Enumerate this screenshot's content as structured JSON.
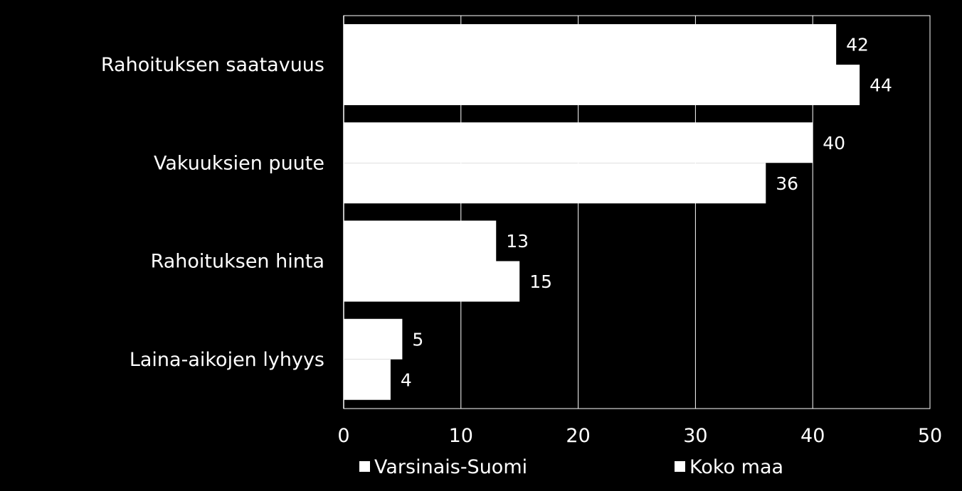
{
  "chart_data": {
    "type": "bar",
    "orientation": "horizontal",
    "categories": [
      "Rahoituksen saatavuus",
      "Vakuuksien puute",
      "Rahoituksen hinta",
      "Laina-aikojen lyhyys"
    ],
    "series": [
      {
        "name": "Varsinais-Suomi",
        "values": [
          42,
          40,
          13,
          5
        ],
        "color": "#ffffff"
      },
      {
        "name": "Koko maa",
        "values": [
          44,
          36,
          15,
          4
        ],
        "color": "#ffffff"
      }
    ],
    "xlim": [
      0,
      50
    ],
    "xticks": [
      0,
      10,
      20,
      30,
      40,
      50
    ],
    "grid": true,
    "legend_position": "bottom",
    "background": "#000000",
    "gridline_color": "#ffffff"
  }
}
